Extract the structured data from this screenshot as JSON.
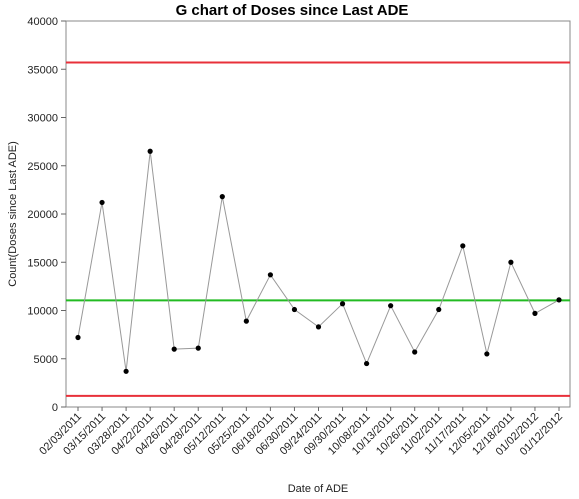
{
  "chart_data": {
    "type": "line",
    "title": "G chart of Doses since Last ADE",
    "xlabel": "Date of ADE",
    "ylabel": "Count(Doses since Last ADE)",
    "ylim": [
      0,
      40000
    ],
    "yticks": [
      0,
      5000,
      10000,
      15000,
      20000,
      25000,
      30000,
      35000,
      40000
    ],
    "categories": [
      "02/03/2011",
      "03/15/2011",
      "03/28/2011",
      "04/22/2011",
      "04/26/2011",
      "04/28/2011",
      "05/12/2011",
      "05/25/2011",
      "06/18/2011",
      "06/30/2011",
      "09/24/2011",
      "09/30/2011",
      "10/08/2011",
      "10/13/2011",
      "10/26/2011",
      "11/02/2011",
      "11/17/2011",
      "12/05/2011",
      "12/18/2011",
      "01/02/2012",
      "01/12/2012"
    ],
    "series": [
      {
        "values": [
          7200,
          21200,
          3700,
          26500,
          6000,
          6100,
          21800,
          8900,
          13700,
          10100,
          8300,
          10700,
          4500,
          10500,
          5700,
          10100,
          16700,
          5500,
          15000,
          9700,
          11100
        ]
      }
    ],
    "reference_lines": {
      "center_line": 11050,
      "upper_control_limit": 35700,
      "lower_control_limit": 1150
    },
    "colors": {
      "data_line": "#999999",
      "points": "#000000",
      "center_line": "#22bb22",
      "control_limits": "#e8303a"
    },
    "grid": false,
    "legend": "none"
  }
}
